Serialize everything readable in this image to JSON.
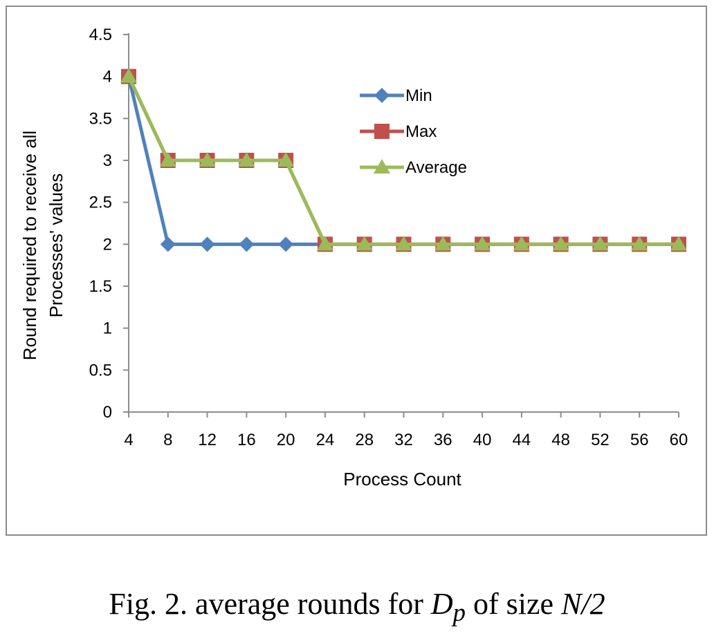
{
  "chart_data": {
    "type": "line",
    "xlabel": "Process Count",
    "ylabel_lines": [
      "Round required to receive all",
      "Processes' values"
    ],
    "categories": [
      "4",
      "8",
      "12",
      "16",
      "20",
      "24",
      "28",
      "32",
      "36",
      "40",
      "44",
      "48",
      "52",
      "56",
      "60"
    ],
    "ylim": [
      0,
      4.5
    ],
    "yticks": [
      "0",
      "0.5",
      "1",
      "1.5",
      "2",
      "2.5",
      "3",
      "3.5",
      "4",
      "4.5"
    ],
    "grid": false,
    "legend_position": "top-right",
    "series": [
      {
        "name": "Min",
        "color": "#4f81bd",
        "marker": "diamond",
        "values": [
          4,
          2,
          2,
          2,
          2,
          2,
          2,
          2,
          2,
          2,
          2,
          2,
          2,
          2,
          2
        ]
      },
      {
        "name": "Max",
        "color": "#c0504d",
        "marker": "square",
        "values": [
          4,
          3,
          3,
          3,
          3,
          2,
          2,
          2,
          2,
          2,
          2,
          2,
          2,
          2,
          2
        ]
      },
      {
        "name": "Average",
        "color": "#9bbb59",
        "marker": "triangle",
        "values": [
          4,
          3,
          3,
          3,
          3,
          2,
          2,
          2,
          2,
          2,
          2,
          2,
          2,
          2,
          2
        ]
      }
    ]
  },
  "caption": {
    "prefix": "Fig. 2.  average rounds for ",
    "symbol": "D",
    "subscript": "p",
    "middle": " of size ",
    "size": "N/2"
  }
}
